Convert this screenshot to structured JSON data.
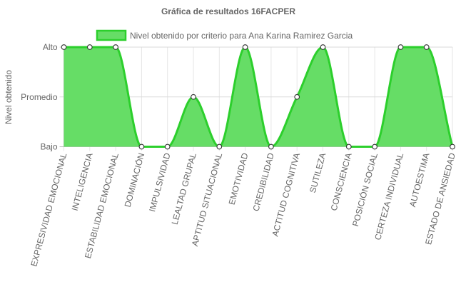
{
  "chart_data": {
    "type": "area",
    "title": "Gráfica de resultados 16FACPER",
    "xlabel": "",
    "ylabel": "Nivel obtenido",
    "y_levels": [
      "Bajo",
      "Promedio",
      "Alto"
    ],
    "ylim": [
      0,
      2
    ],
    "legend_position": "top",
    "grid": true,
    "categories": [
      "EXPRESIVIDAD EMOCIONAL",
      "INTELIGENCIA",
      "ESTABILIDAD EMOCIONAL",
      "DOMINACIÓN",
      "IMPULSIVIDAD",
      "LEALTAD GRUPAL",
      "APTITUD SITUACIONAL",
      "EMOTIVIDAD",
      "CREDIBILIDAD",
      "ACTITUD COGNITIVA",
      "SUTILEZA",
      "CONSCIENCIA",
      "POSICIÓN SOCIAL",
      "CERTEZA INDIVIDUAL",
      "AUTOESTIMA",
      "ESTADO DE ANSIEDAD"
    ],
    "series": [
      {
        "name": "Nivel obtenido por criterio para Ana Karina Ramirez Garcia",
        "values": [
          2,
          2,
          2,
          0,
          0,
          1,
          0,
          2,
          0,
          1,
          2,
          0,
          0,
          2,
          2,
          0
        ],
        "line_color": "#2ccf2c",
        "fill_color": "#66dd66"
      }
    ]
  }
}
